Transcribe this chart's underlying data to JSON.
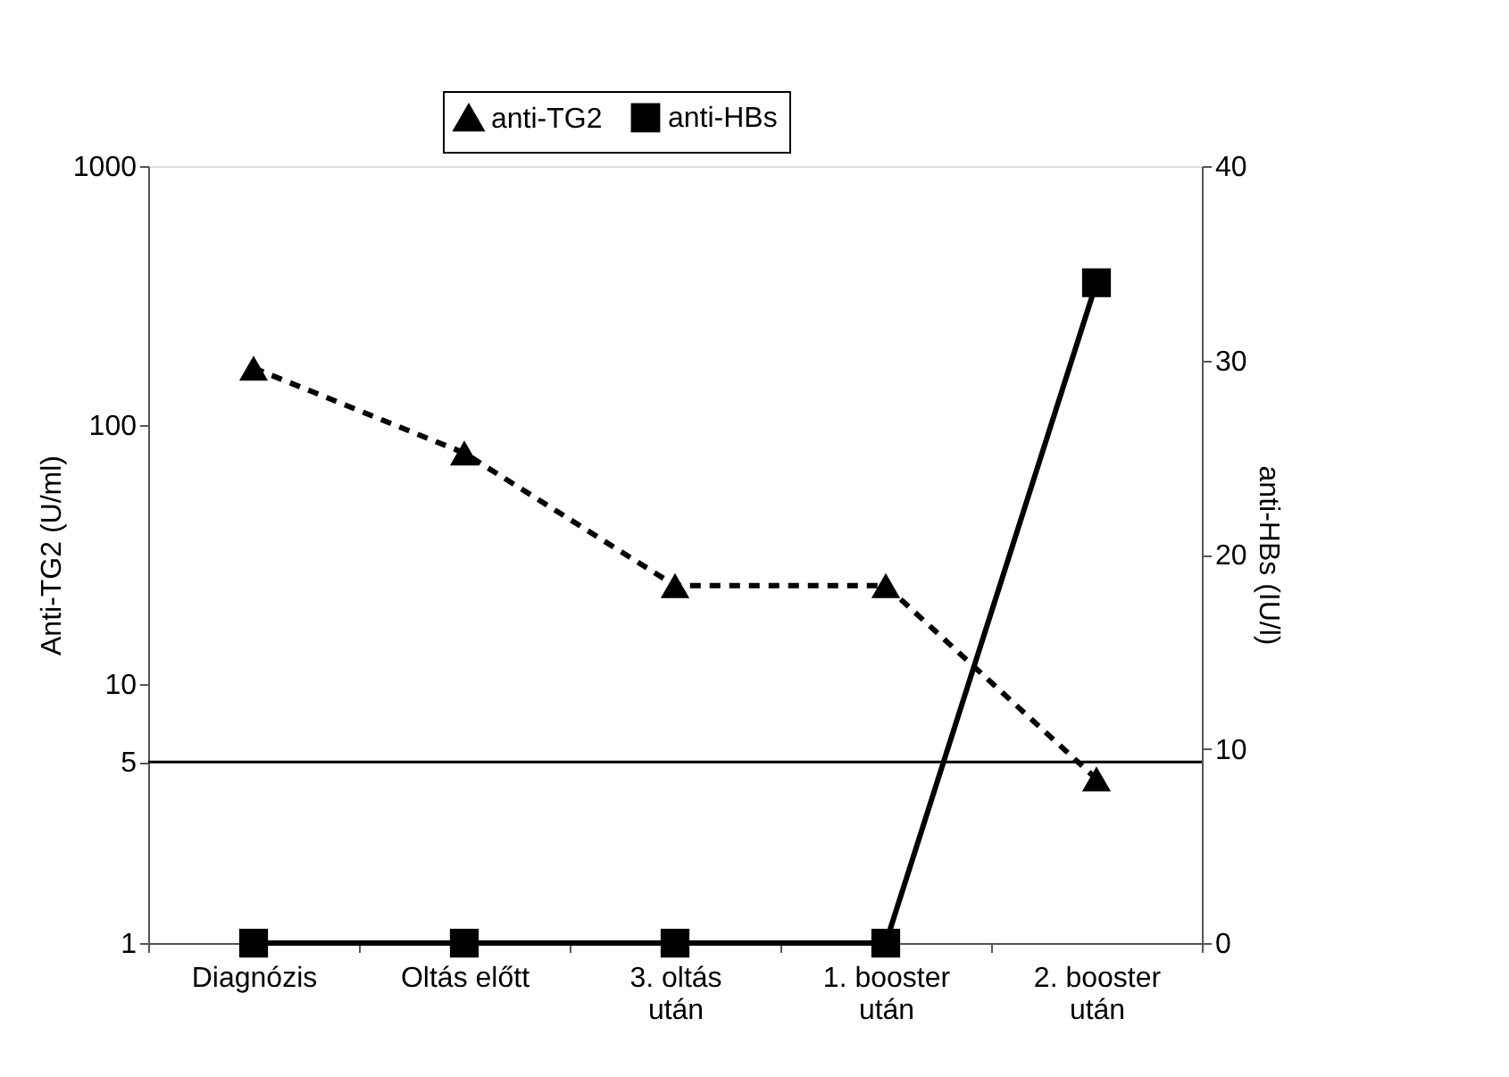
{
  "chart_data": {
    "type": "line",
    "categories": [
      "Diagnózis",
      "Oltás előtt",
      "3. oltás\nután",
      "1. booster\nután",
      "2. booster\nután"
    ],
    "series": [
      {
        "name": "anti-TG2",
        "color": "#000000",
        "marker": "triangle",
        "line_style": "dashed",
        "values": [
          166,
          78,
          24,
          24,
          4.3
        ]
      },
      {
        "name": "anti-HBs",
        "color": "#000000",
        "marker": "square",
        "line_style": "solid",
        "axis": "y2",
        "values": [
          0,
          0,
          0,
          0,
          34
        ]
      }
    ],
    "ylabel": "Anti-TG2 (U/ml)",
    "y2label": "anti-HBs (IU/l)",
    "log": "y",
    "ylim": [
      1,
      1000
    ],
    "yticks": [
      1,
      5,
      10,
      100,
      1000
    ],
    "y2lim": [
      0,
      40
    ],
    "y2ticks": [
      0,
      10,
      20,
      30,
      40
    ],
    "ref_lines": [
      {
        "axis": "y",
        "value": 5,
        "color": "#000000",
        "line_style": "solid"
      }
    ],
    "grid": false,
    "legend": "top"
  }
}
